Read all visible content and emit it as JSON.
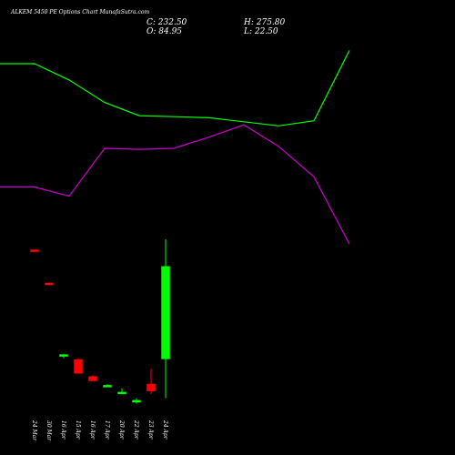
{
  "header": {
    "title": "ALKEM 5450  PE Options  Chart MunafaSutra.com",
    "close_label": "C: 232.50",
    "open_label": "O: 84.95",
    "high_label": "H: 275.80",
    "low_label": "L: 22.50"
  },
  "colors": {
    "background": "#000000",
    "up": "#00ff00",
    "down": "#ff0000",
    "line_green": "#00ff00",
    "line_magenta": "#cc00cc",
    "text": "#ffffff"
  },
  "chart_data": [
    {
      "type": "line",
      "series": [
        {
          "color": "#00ff00",
          "values": [
            1.0,
            1.0,
            0.84,
            0.62,
            0.49,
            0.48,
            0.47,
            0.43,
            0.39,
            0.44,
            1.13
          ]
        },
        {
          "color": "#cc00cc",
          "values": [
            -0.21,
            -0.21,
            -0.3,
            0.17,
            0.16,
            0.17,
            0.28,
            0.4,
            0.19,
            -0.11,
            -0.77
          ]
        }
      ]
    },
    {
      "type": "candlestick",
      "ylim": [
        0,
        280
      ],
      "categories": [
        "24 Mar",
        "30 Mar",
        "16 Apr",
        "15 Apr",
        "16 Apr",
        "17 Apr",
        "20 Apr",
        "22 Apr",
        "23 Apr",
        "24 Apr"
      ],
      "candles": [
        {
          "open": 259,
          "high": 259,
          "low": 258,
          "close": 258
        },
        {
          "open": 206,
          "high": 206,
          "low": 205,
          "close": 205
        },
        {
          "open": 92,
          "high": 93,
          "low": 86,
          "close": 92
        },
        {
          "open": 84,
          "high": 86,
          "low": 62,
          "close": 62
        },
        {
          "open": 57,
          "high": 59,
          "low": 50,
          "close": 50
        },
        {
          "open": 42,
          "high": 45,
          "low": 41,
          "close": 43
        },
        {
          "open": 32,
          "high": 38,
          "low": 31,
          "close": 32
        },
        {
          "open": 16,
          "high": 22,
          "low": 14,
          "close": 19
        },
        {
          "open": 45,
          "high": 69,
          "low": 29,
          "close": 34
        },
        {
          "open": 85,
          "high": 275.8,
          "low": 22.5,
          "close": 232.5
        }
      ]
    }
  ]
}
